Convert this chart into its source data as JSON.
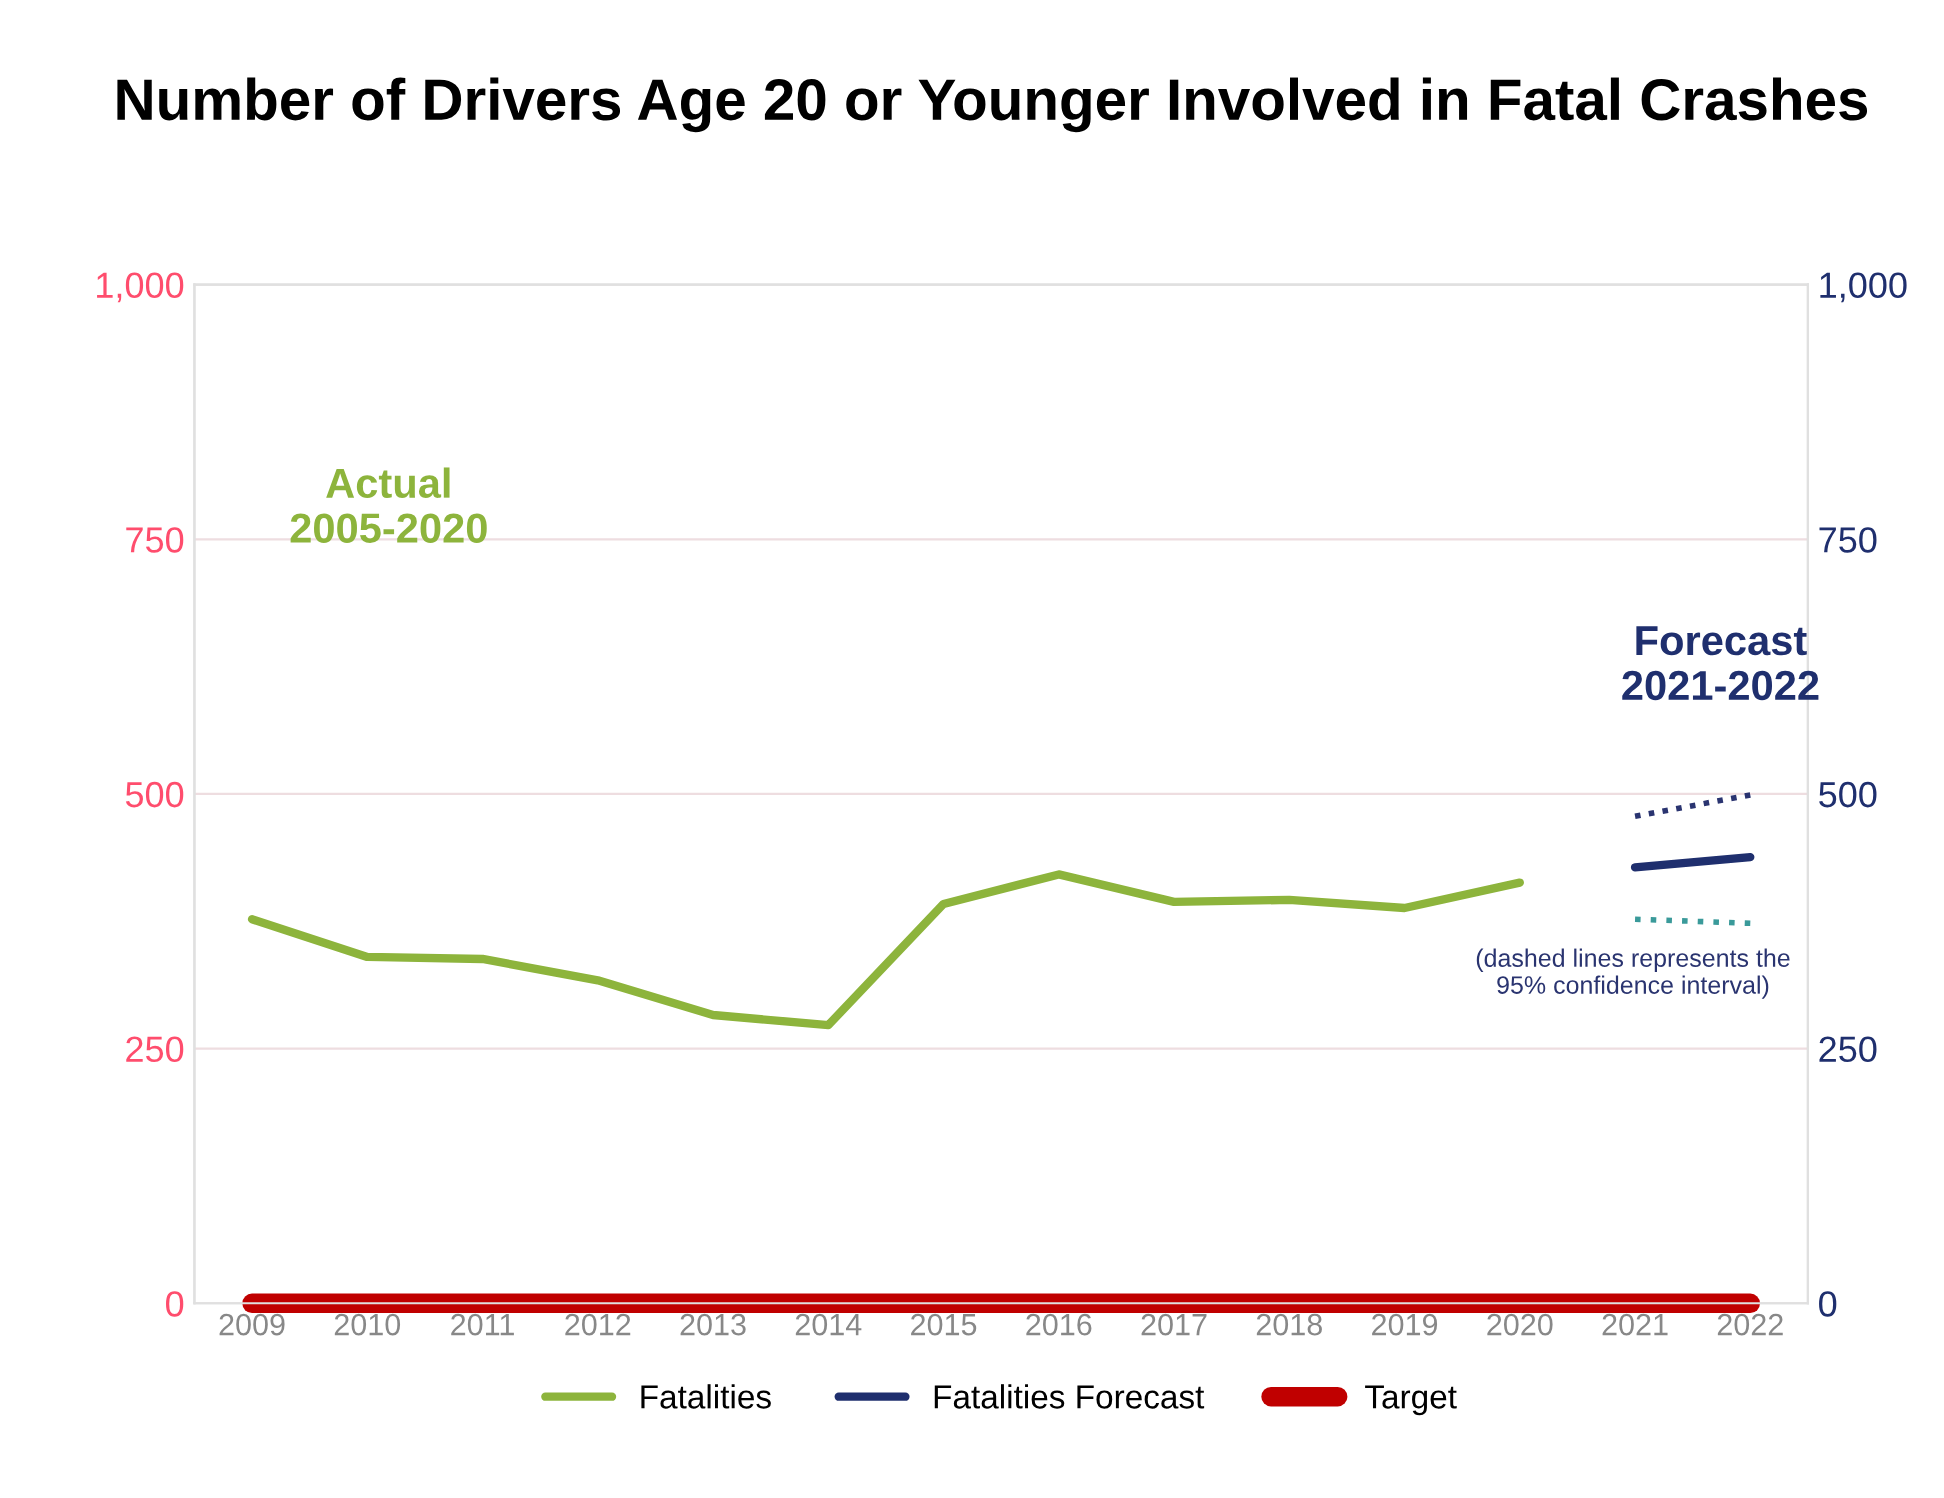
{
  "chart_data": {
    "type": "line",
    "title": "Number of Drivers Age 20 or Younger Involved in Fatal Crashes",
    "categories": [
      "2009",
      "2010",
      "2011",
      "2012",
      "2013",
      "2014",
      "2015",
      "2016",
      "2017",
      "2018",
      "2019",
      "2020",
      "2021",
      "2022"
    ],
    "series": [
      {
        "name": "Fatalities",
        "color": "#8db43c",
        "values": [
          377,
          340,
          338,
          317,
          283,
          273,
          392,
          421,
          394,
          396,
          388,
          413,
          null,
          null
        ]
      },
      {
        "name": "Fatalities Forecast",
        "color": "#1f2f6e",
        "values": [
          null,
          null,
          null,
          null,
          null,
          null,
          null,
          null,
          null,
          null,
          null,
          null,
          428,
          438
        ]
      },
      {
        "color": "#2a3470",
        "line_style": "dotted",
        "values": [
          null,
          null,
          null,
          null,
          null,
          null,
          null,
          null,
          null,
          null,
          null,
          null,
          478,
          499
        ]
      },
      {
        "color": "#3a9a9a",
        "line_style": "dotted",
        "values": [
          null,
          null,
          null,
          null,
          null,
          null,
          null,
          null,
          null,
          null,
          null,
          null,
          377,
          373
        ]
      },
      {
        "name": "Target",
        "color": "#c00000",
        "values": [
          0,
          0,
          0,
          0,
          0,
          0,
          0,
          0,
          0,
          0,
          0,
          0,
          0,
          0
        ]
      }
    ],
    "ylim": [
      0,
      1000
    ],
    "yticks": [
      0,
      {
        "value": 250,
        "label": "250"
      },
      {
        "value": 500,
        "label": "500"
      },
      {
        "value": 750,
        "label": "750"
      },
      {
        "value": 1000,
        "label": "1,000"
      }
    ],
    "y2lim": [
      0,
      1000
    ],
    "y2ticks": [
      0,
      250,
      500,
      750,
      {
        "value": 1000,
        "label": "1,000"
      }
    ],
    "grid": "y",
    "legend": "bottom",
    "line_style": "solid",
    "annotations": [
      "Actual\n2005-2020",
      "Forecast\n2021-2022",
      "(dashed lines represents the\n95% confidence interval)"
    ]
  }
}
